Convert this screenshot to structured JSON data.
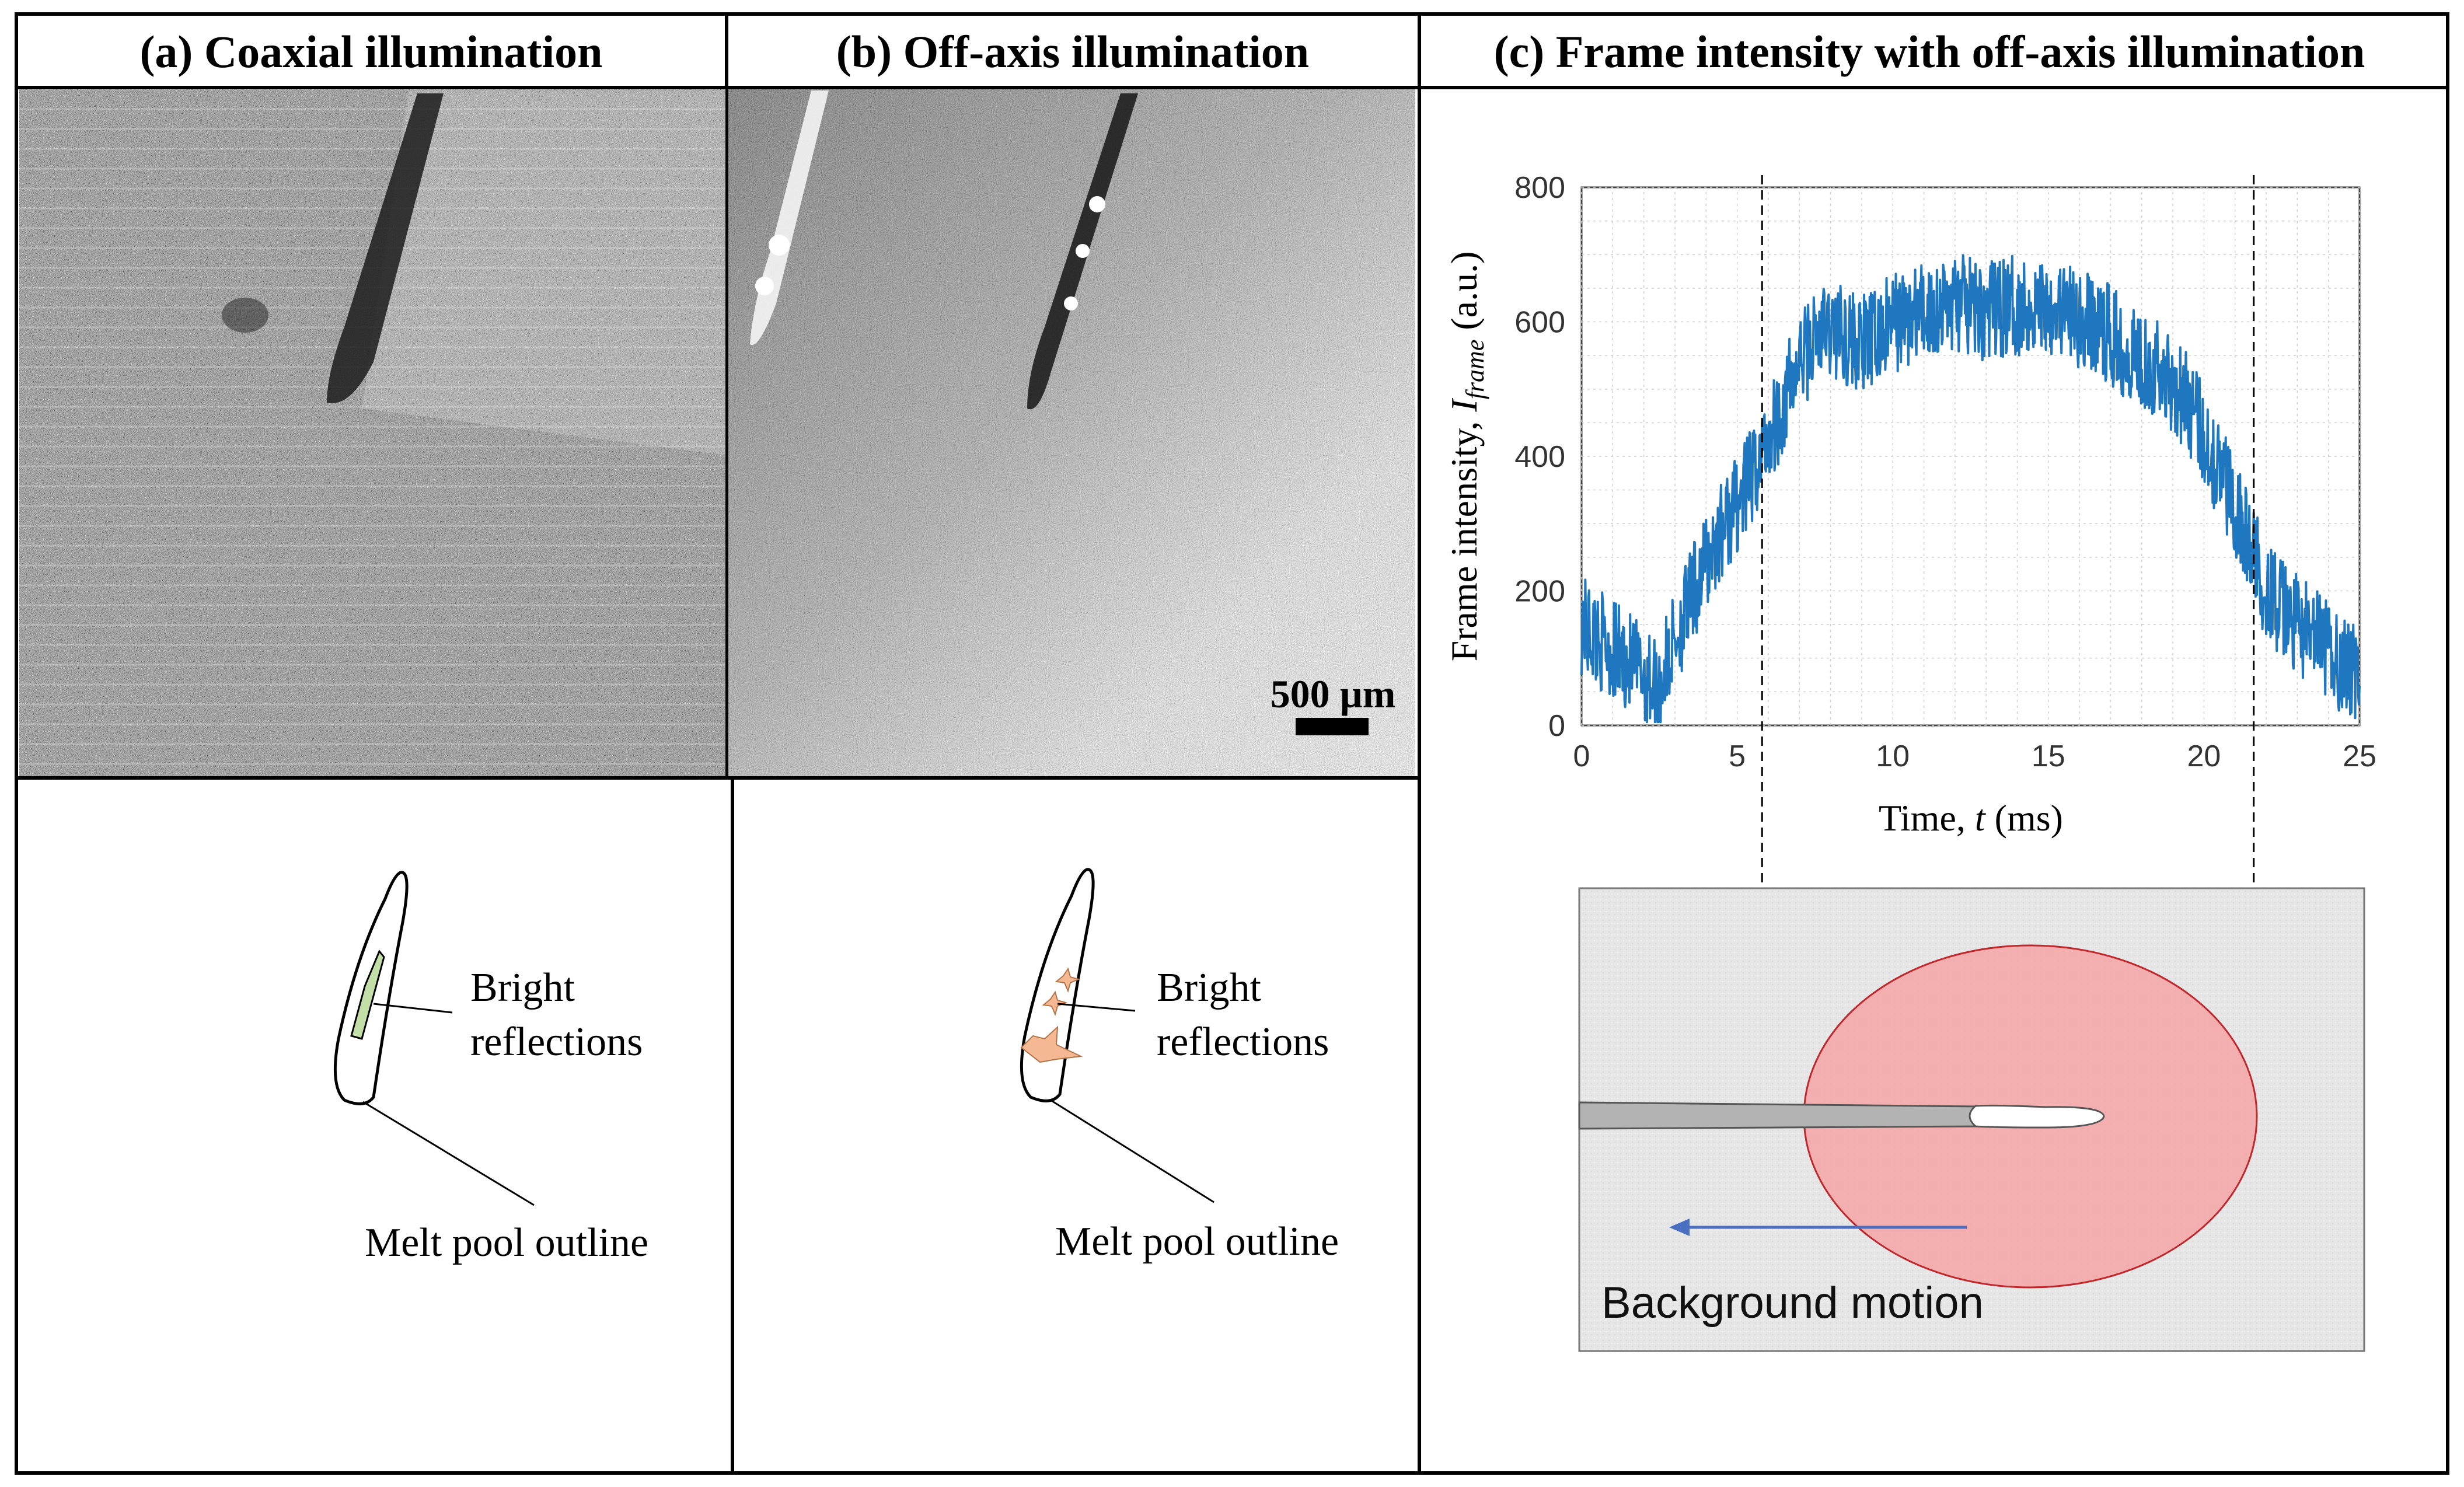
{
  "panels": {
    "a_title": "(a) Coaxial illumination",
    "b_title": "(b) Off-axis illumination",
    "c_title": "(c) Frame intensity with off-axis illumination"
  },
  "micrograph": {
    "scale_bar_label": "500 µm"
  },
  "sketch_a": {
    "bright_label_line1": "Bright",
    "bright_label_line2": "reflections",
    "outline_label": "Melt pool outline",
    "reflection_color": "#c3dfa8"
  },
  "sketch_b": {
    "bright_label_line1": "Bright",
    "bright_label_line2": "reflections",
    "outline_label": "Melt pool outline",
    "reflection_color": "#f4b993"
  },
  "chart_data": {
    "type": "line",
    "title": "",
    "xlabel": "Time, t (ms)",
    "ylabel": "Frame intensity, I_frame (a.u.)",
    "ylabel_prefix": "Frame intensity, ",
    "ylabel_symbol": "I",
    "ylabel_subscript": "frame",
    "ylabel_suffix": " (a.u.)",
    "xlabel_prefix": "Time, ",
    "xlabel_symbol": "t",
    "xlabel_suffix": " (ms)",
    "xlim": [
      0,
      25
    ],
    "ylim": [
      0,
      800
    ],
    "xticks": [
      0,
      5,
      10,
      15,
      20,
      25
    ],
    "yticks": [
      0,
      200,
      400,
      600,
      800
    ],
    "grid": true,
    "line_color": "#1f77c0",
    "dashed_markers_x": [
      5.8,
      21.6
    ],
    "series": [
      {
        "name": "Frame intensity",
        "x": [
          0,
          0.5,
          1,
          1.5,
          2,
          2.5,
          3,
          3.5,
          4,
          4.5,
          5,
          5.5,
          6,
          6.5,
          7,
          7.5,
          8,
          8.5,
          9,
          9.5,
          10,
          10.5,
          11,
          11.5,
          12,
          12.5,
          13,
          13.5,
          14,
          14.5,
          15,
          15.5,
          16,
          16.5,
          17,
          17.5,
          18,
          18.5,
          19,
          19.5,
          20,
          20.5,
          21,
          21.5,
          22,
          22.5,
          23,
          23.5,
          24,
          24.5,
          25
        ],
        "y": [
          150,
          130,
          110,
          95,
          75,
          55,
          130,
          185,
          240,
          290,
          330,
          370,
          430,
          480,
          540,
          575,
          590,
          580,
          565,
          575,
          600,
          605,
          615,
          620,
          630,
          620,
          615,
          620,
          625,
          620,
          630,
          615,
          600,
          595,
          580,
          560,
          550,
          530,
          510,
          480,
          430,
          380,
          330,
          260,
          205,
          170,
          150,
          130,
          110,
          90,
          70
        ]
      }
    ]
  },
  "schematic": {
    "background_motion_label": "Background motion",
    "illumination_spot_color": "#f4a5a5",
    "background_color": "#e6e6e6",
    "arrow_color": "#4a6fc0"
  }
}
